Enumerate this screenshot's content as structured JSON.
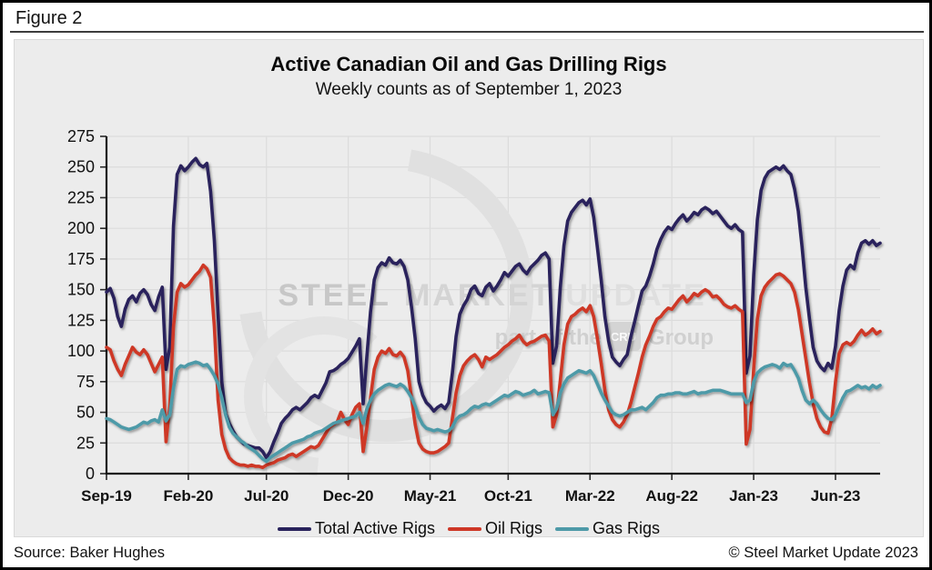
{
  "window": {
    "figure_label": "Figure 2"
  },
  "chart": {
    "title": "Active Canadian Oil and Gas Drilling Rigs",
    "subtitle": "Weekly counts as of September 1, 2023"
  },
  "watermark": {
    "word1": "STEEL",
    "word2": "MARKET",
    "word3": "UPDATE",
    "tagline_prefix": "part of the",
    "logo_text": "CRU",
    "tagline_suffix": "Group"
  },
  "footer": {
    "source": "Source: Baker Hughes",
    "copyright": "© Steel Market Update 2023"
  },
  "chart_data": {
    "type": "line",
    "title": "Active Canadian Oil and Gas Drilling Rigs",
    "subtitle": "Weekly counts as of September 1, 2023",
    "x_unit": "week",
    "n_points": 209,
    "x_tick_labels": [
      "Sep-19",
      "Feb-20",
      "Jul-20",
      "Dec-20",
      "May-21",
      "Oct-21",
      "Mar-22",
      "Aug-22",
      "Jan-23",
      "Jun-23"
    ],
    "x_tick_indices": [
      0,
      22,
      43,
      65,
      87,
      108,
      130,
      152,
      174,
      196
    ],
    "ylim": [
      0,
      275
    ],
    "y_tick_step": 25,
    "y_tick_labels": [
      "0",
      "25",
      "50",
      "75",
      "100",
      "125",
      "150",
      "175",
      "200",
      "225",
      "250",
      "275"
    ],
    "grid": true,
    "legend_position": "bottom",
    "background": "#ececec",
    "series": [
      {
        "name": "Total Active Rigs",
        "color": "#29235C",
        "values": [
          148,
          151,
          143,
          128,
          120,
          134,
          142,
          145,
          140,
          147,
          150,
          146,
          138,
          133,
          144,
          152,
          85,
          103,
          202,
          244,
          251,
          247,
          250,
          254,
          257,
          252,
          250,
          253,
          230,
          190,
          130,
          75,
          49,
          41,
          35,
          30,
          27,
          24,
          23,
          22,
          21,
          21,
          18,
          13,
          18,
          26,
          33,
          41,
          45,
          48,
          52,
          54,
          52,
          55,
          58,
          62,
          64,
          62,
          68,
          74,
          83,
          84,
          86,
          89,
          91,
          94,
          99,
          104,
          110,
          57,
          96,
          132,
          158,
          168,
          172,
          170,
          176,
          172,
          171,
          174,
          169,
          158,
          136,
          110,
          75,
          64,
          58,
          55,
          51,
          54,
          56,
          53,
          58,
          82,
          112,
          130,
          137,
          142,
          150,
          153,
          147,
          145,
          152,
          155,
          149,
          153,
          158,
          164,
          161,
          165,
          169,
          171,
          166,
          163,
          168,
          171,
          174,
          178,
          180,
          175,
          90,
          104,
          152,
          186,
          206,
          213,
          217,
          221,
          223,
          219,
          224,
          209,
          184,
          158,
          128,
          108,
          95,
          91,
          88,
          93,
          97,
          112,
          124,
          137,
          149,
          153,
          161,
          171,
          183,
          191,
          197,
          201,
          199,
          204,
          208,
          211,
          206,
          209,
          213,
          211,
          215,
          217,
          215,
          212,
          214,
          210,
          206,
          202,
          200,
          203,
          199,
          197,
          82,
          96,
          162,
          207,
          231,
          241,
          246,
          248,
          250,
          248,
          251,
          247,
          244,
          232,
          214,
          185,
          152,
          126,
          103,
          92,
          87,
          84,
          90,
          86,
          104,
          133,
          153,
          166,
          170,
          167,
          180,
          188,
          190,
          187,
          190,
          186,
          188
        ]
      },
      {
        "name": "Oil Rigs",
        "color": "#CE3827",
        "values": [
          103,
          101,
          92,
          85,
          80,
          89,
          96,
          103,
          99,
          97,
          101,
          97,
          90,
          83,
          89,
          95,
          26,
          55,
          120,
          148,
          155,
          152,
          154,
          158,
          162,
          165,
          170,
          167,
          160,
          120,
          60,
          32,
          20,
          13,
          10,
          8,
          7,
          7,
          6,
          7,
          6,
          6,
          5,
          7,
          8,
          9,
          11,
          12,
          13,
          15,
          16,
          14,
          16,
          18,
          20,
          22,
          21,
          23,
          28,
          33,
          38,
          40,
          42,
          50,
          44,
          40,
          48,
          54,
          57,
          18,
          38,
          62,
          85,
          95,
          100,
          98,
          102,
          97,
          96,
          99,
          95,
          84,
          62,
          40,
          25,
          20,
          18,
          17,
          17,
          18,
          20,
          22,
          25,
          45,
          66,
          80,
          88,
          92,
          95,
          97,
          93,
          87,
          95,
          93,
          95,
          97,
          100,
          103,
          105,
          108,
          110,
          113,
          108,
          105,
          107,
          108,
          110,
          112,
          113,
          108,
          38,
          48,
          76,
          105,
          122,
          128,
          130,
          133,
          135,
          132,
          137,
          128,
          110,
          90,
          68,
          52,
          44,
          40,
          38,
          42,
          48,
          58,
          70,
          82,
          95,
          105,
          112,
          120,
          126,
          128,
          132,
          135,
          134,
          138,
          142,
          145,
          140,
          143,
          147,
          145,
          148,
          150,
          148,
          144,
          145,
          142,
          138,
          136,
          135,
          137,
          134,
          132,
          24,
          36,
          86,
          126,
          145,
          152,
          156,
          159,
          162,
          163,
          161,
          158,
          155,
          148,
          134,
          114,
          94,
          74,
          57,
          45,
          38,
          34,
          33,
          45,
          75,
          98,
          105,
          107,
          105,
          108,
          113,
          117,
          113,
          115,
          118,
          114,
          116
        ]
      },
      {
        "name": "Gas Rigs",
        "color": "#4E9AA8",
        "values": [
          45,
          44,
          42,
          40,
          38,
          37,
          36,
          37,
          38,
          40,
          42,
          41,
          43,
          44,
          42,
          52,
          43,
          48,
          70,
          85,
          88,
          87,
          89,
          90,
          91,
          90,
          88,
          89,
          85,
          80,
          73,
          62,
          48,
          38,
          33,
          30,
          27,
          25,
          22,
          20,
          18,
          15,
          12,
          10,
          13,
          15,
          17,
          19,
          21,
          23,
          25,
          26,
          27,
          28,
          30,
          31,
          33,
          34,
          35,
          37,
          39,
          41,
          42,
          43,
          44,
          45,
          46,
          47,
          50,
          41,
          53,
          60,
          65,
          68,
          70,
          72,
          73,
          72,
          71,
          73,
          71,
          67,
          62,
          55,
          46,
          40,
          37,
          36,
          35,
          36,
          35,
          34,
          35,
          38,
          44,
          47,
          48,
          50,
          53,
          55,
          54,
          56,
          57,
          56,
          58,
          60,
          62,
          64,
          63,
          65,
          67,
          66,
          64,
          65,
          66,
          68,
          65,
          66,
          67,
          66,
          48,
          53,
          66,
          73,
          78,
          80,
          82,
          84,
          83,
          82,
          84,
          80,
          73,
          66,
          60,
          55,
          50,
          48,
          47,
          48,
          50,
          52,
          52,
          53,
          54,
          52,
          55,
          58,
          62,
          64,
          64,
          65,
          65,
          66,
          66,
          65,
          65,
          66,
          67,
          65,
          66,
          66,
          67,
          68,
          68,
          68,
          67,
          66,
          65,
          65,
          65,
          65,
          58,
          60,
          75,
          82,
          85,
          87,
          88,
          89,
          88,
          86,
          90,
          88,
          89,
          84,
          78,
          68,
          60,
          57,
          60,
          57,
          52,
          48,
          45,
          44,
          48,
          55,
          62,
          67,
          68,
          70,
          72,
          70,
          71,
          69,
          72,
          70,
          72
        ]
      }
    ]
  }
}
